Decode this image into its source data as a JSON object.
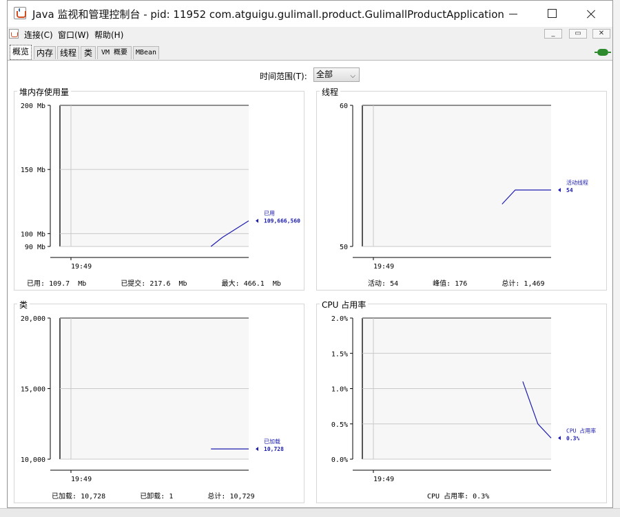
{
  "window": {
    "title": "Java 监视和管理控制台 - pid: 11952 com.atguigu.gulimall.product.GulimallProductApplication",
    "icon": "java-cup-icon"
  },
  "menu": {
    "items": [
      "连接(C)",
      "窗口(W)",
      "帮助(H)"
    ]
  },
  "mdi_controls": [
    "_",
    "▭",
    "✕"
  ],
  "tabs": [
    "概览",
    "内存",
    "线程",
    "类",
    "VM 概要",
    "MBean"
  ],
  "active_tab": "概览",
  "time_range": {
    "label": "时间范围(T):",
    "value": "全部"
  },
  "colors": {
    "line": "#1c1cae",
    "plot_bg": "#f7f7f7",
    "grid": "#c8c8c8"
  },
  "panels": {
    "heap": {
      "title": "堆内存使用量",
      "stats": {
        "used_label": "已用:",
        "used": "109.7  Mb",
        "committed_label": "已提交:",
        "committed": "217.6  Mb",
        "max_label": "最大:",
        "max": "466.1  Mb"
      }
    },
    "threads": {
      "title": "线程",
      "stats": {
        "live_label": "活动:",
        "live": "54",
        "peak_label": "峰值:",
        "peak": "176",
        "total_label": "总计:",
        "total": "1,469"
      }
    },
    "classes": {
      "title": "类",
      "stats": {
        "loaded_label": "已加载:",
        "loaded": "10,728",
        "unloaded_label": "已卸载:",
        "unloaded": "1",
        "total_label": "总计:",
        "total": "10,729"
      }
    },
    "cpu": {
      "title": "CPU 占用率",
      "stats": {
        "cpu_label": "CPU 占用率:",
        "cpu": "0.3%"
      }
    }
  },
  "chart_data": [
    {
      "id": "heap",
      "type": "line",
      "title": "堆内存使用量",
      "y_ticks": [
        {
          "value": 90,
          "label": "90 Mb"
        },
        {
          "value": 100,
          "label": "100 Mb"
        },
        {
          "value": 150,
          "label": "150 Mb"
        },
        {
          "value": 200,
          "label": "200 Mb"
        }
      ],
      "ylim": [
        90,
        200
      ],
      "x_ticks": [
        {
          "value": 0,
          "label": "19:49"
        }
      ],
      "xlim": [
        0,
        100
      ],
      "series": [
        {
          "name": "已用",
          "value_label": "109,666,560",
          "points": [
            [
              80,
              90
            ],
            [
              86,
              97
            ],
            [
              100,
              110
            ]
          ]
        }
      ]
    },
    {
      "id": "threads",
      "type": "line",
      "title": "线程",
      "y_ticks": [
        {
          "value": 50,
          "label": "50"
        },
        {
          "value": 60,
          "label": "60"
        }
      ],
      "ylim": [
        50,
        60
      ],
      "x_ticks": [
        {
          "value": 0,
          "label": "19:49"
        }
      ],
      "xlim": [
        0,
        100
      ],
      "series": [
        {
          "name": "活动线程",
          "value_label": "54",
          "points": [
            [
              74,
              53
            ],
            [
              81,
              54
            ],
            [
              100,
              54
            ]
          ]
        }
      ]
    },
    {
      "id": "classes",
      "type": "line",
      "title": "类",
      "y_ticks": [
        {
          "value": 10000,
          "label": "10,000"
        },
        {
          "value": 15000,
          "label": "15,000"
        },
        {
          "value": 20000,
          "label": "20,000"
        }
      ],
      "ylim": [
        10000,
        20000
      ],
      "x_ticks": [
        {
          "value": 0,
          "label": "19:49"
        }
      ],
      "xlim": [
        0,
        100
      ],
      "series": [
        {
          "name": "已加载",
          "value_label": "10,728",
          "points": [
            [
              80,
              10728
            ],
            [
              100,
              10728
            ]
          ]
        }
      ]
    },
    {
      "id": "cpu",
      "type": "line",
      "title": "CPU 占用率",
      "y_ticks": [
        {
          "value": 0,
          "label": "0.0%"
        },
        {
          "value": 0.5,
          "label": "0.5%"
        },
        {
          "value": 1.0,
          "label": "1.0%"
        },
        {
          "value": 1.5,
          "label": "1.5%"
        },
        {
          "value": 2.0,
          "label": "2.0%"
        }
      ],
      "ylim": [
        0,
        2.0
      ],
      "x_ticks": [
        {
          "value": 0,
          "label": "19:49"
        }
      ],
      "xlim": [
        0,
        100
      ],
      "series": [
        {
          "name": "CPU 占用率",
          "value_label": "0.3%",
          "points": [
            [
              85,
              1.1
            ],
            [
              93,
              0.5
            ],
            [
              100,
              0.3
            ]
          ]
        }
      ]
    }
  ]
}
